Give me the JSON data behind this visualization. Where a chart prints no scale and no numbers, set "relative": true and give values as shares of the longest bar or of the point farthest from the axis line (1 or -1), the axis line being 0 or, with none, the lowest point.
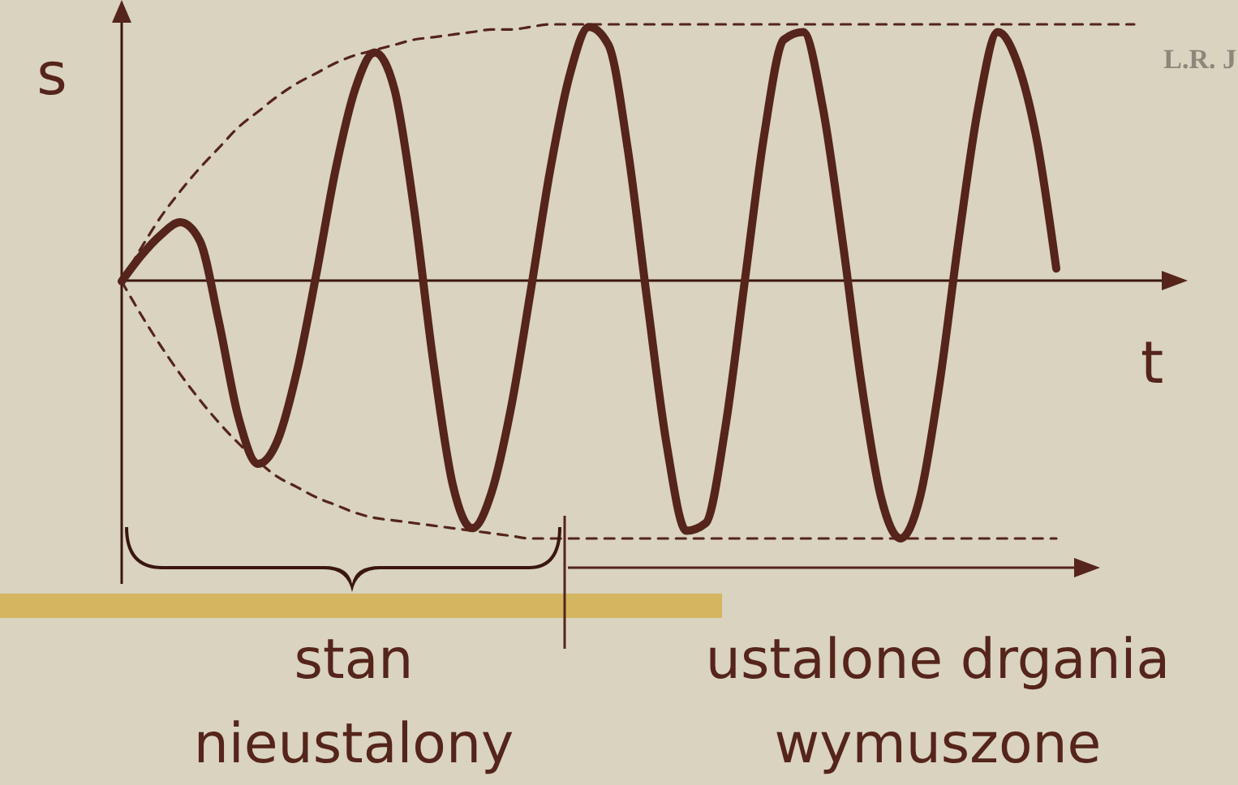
{
  "chart_data": {
    "type": "line",
    "relative": true,
    "xlabel": "t",
    "ylabel": "s",
    "categories": [
      null,
      null,
      null,
      null,
      null,
      null,
      null,
      null,
      null,
      null,
      null,
      null,
      null,
      null,
      null,
      null,
      null,
      null,
      null,
      null,
      null,
      null,
      null,
      null,
      null,
      null,
      null,
      null,
      null,
      null,
      null,
      null,
      null,
      null,
      null,
      null,
      null,
      null,
      null,
      null,
      null,
      null,
      null,
      null,
      null,
      null,
      null,
      null,
      null,
      null,
      null,
      null,
      null
    ],
    "series": [
      {
        "color": "#55241a",
        "line_style": "solid",
        "values": [
          0,
          0.1,
          0.18,
          0.23,
          0.16,
          -0.16,
          -0.53,
          -0.71,
          -0.62,
          -0.35,
          0.03,
          0.44,
          0.75,
          0.89,
          0.75,
          0.29,
          -0.31,
          -0.79,
          -0.96,
          -0.82,
          -0.49,
          -0.04,
          0.43,
          0.8,
          0.99,
          0.92,
          0.51,
          -0.08,
          -0.64,
          -0.97,
          -0.94,
          -0.57,
          0,
          0.57,
          0.94,
          0.97,
          0.68,
          0.17,
          -0.4,
          -0.84,
          -1,
          -0.84,
          -0.4,
          0.17,
          0.68,
          0.97,
          0.85,
          0.55,
          0.05,
          null,
          null,
          null,
          null
        ]
      },
      {
        "color": "#55241a",
        "line_style": "dashed",
        "values": [
          0,
          0.13,
          0.25,
          0.35,
          0.44,
          0.52,
          0.6,
          0.66,
          0.72,
          0.77,
          0.81,
          0.85,
          0.88,
          0.9,
          0.92,
          0.94,
          0.95,
          0.96,
          0.97,
          0.98,
          0.98,
          0.99,
          1,
          1,
          1,
          1,
          1,
          1,
          1,
          1,
          1,
          1,
          1,
          1,
          1,
          1,
          1,
          1,
          1,
          1,
          1,
          1,
          1,
          1,
          1,
          1,
          1,
          1,
          1,
          1,
          1,
          1,
          1
        ]
      },
      {
        "color": "#55241a",
        "line_style": "dashed",
        "values": [
          0,
          -0.13,
          -0.25,
          -0.36,
          -0.46,
          -0.55,
          -0.63,
          -0.7,
          -0.76,
          -0.8,
          -0.84,
          -0.87,
          -0.9,
          -0.92,
          -0.93,
          -0.94,
          -0.95,
          -0.96,
          -0.97,
          -0.98,
          -0.99,
          -1,
          -1,
          -1,
          -1,
          -1,
          -1,
          -1,
          -1,
          -1,
          -1,
          -1,
          -1,
          -1,
          -1,
          -1,
          -1,
          -1,
          -1,
          -1,
          -1,
          -1,
          -1,
          -1,
          -1,
          -1,
          -1,
          -1,
          -1,
          null,
          null,
          null,
          null
        ]
      }
    ],
    "annotations": [
      "L.R. J",
      "stan nieustalony",
      "ustalone drgania wymuszone"
    ]
  }
}
